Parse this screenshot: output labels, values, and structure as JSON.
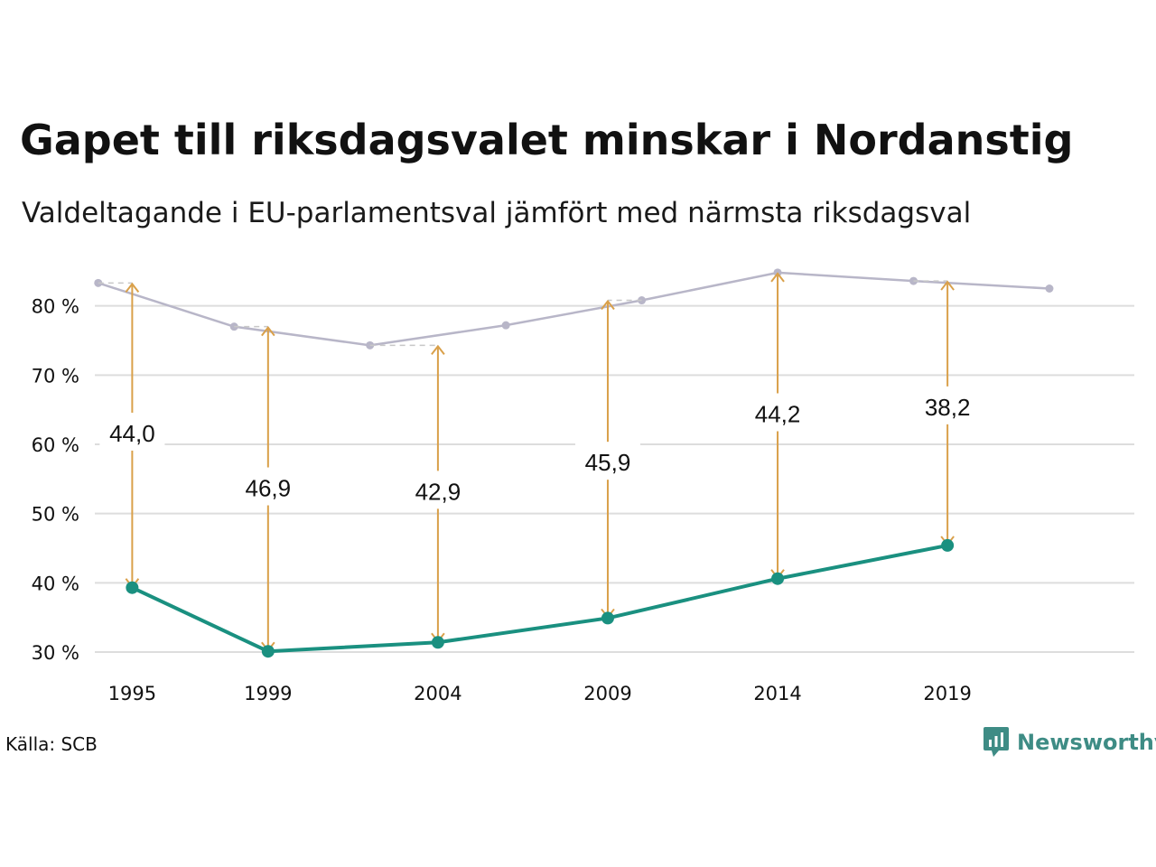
{
  "title": "Gapet till riksdagsvalet minskar i Nordanstig",
  "subtitle": "Valdeltagande i EU-parlamentsval jämfört med närmsta riksdagsval",
  "source": "Källa: SCB",
  "logo": {
    "text": "Newsworthy",
    "icon": "newsworthy-logo-icon",
    "color": "#3e8c85"
  },
  "chart_data": {
    "type": "line",
    "ylim": [
      27,
      87
    ],
    "xlim": [
      1993.9,
      2024.5
    ],
    "yticks": [
      30,
      40,
      50,
      60,
      70,
      80
    ],
    "ytick_labels": [
      "30 %",
      "40 %",
      "50 %",
      "60 %",
      "70 %",
      "80 %"
    ],
    "xticks": [
      1995,
      1999,
      2004,
      2009,
      2014,
      2019
    ],
    "xtick_labels": [
      "1995",
      "1999",
      "2004",
      "2009",
      "2014",
      "2019"
    ],
    "grid": true,
    "series": [
      {
        "name": "",
        "color": "#b8b6c8",
        "x": [
          1994,
          1998,
          2002,
          2006,
          2010,
          2014,
          2018,
          2022
        ],
        "y": [
          83.3,
          77.0,
          74.3,
          77.2,
          80.8,
          84.8,
          83.6,
          82.5
        ]
      },
      {
        "name": "",
        "color": "#1a9080",
        "x": [
          1995,
          1999,
          2004,
          2009,
          2014,
          2019
        ],
        "y": [
          39.3,
          30.1,
          31.4,
          34.9,
          40.6,
          45.4
        ]
      }
    ],
    "gaps": [
      {
        "x": 1995,
        "top": 83.3,
        "bottom": 39.3,
        "label": "44,0",
        "label_y": 61.7
      },
      {
        "x": 1999,
        "top": 77.0,
        "bottom": 30.1,
        "label": "46,9",
        "label_y": 53.8
      },
      {
        "x": 2004,
        "top": 74.3,
        "bottom": 31.4,
        "label": "42,9",
        "label_y": 53.3
      },
      {
        "x": 2009,
        "top": 80.8,
        "bottom": 34.9,
        "label": "45,9",
        "label_y": 57.5
      },
      {
        "x": 2014,
        "top": 84.8,
        "bottom": 40.6,
        "label": "44,2",
        "label_y": 64.5
      },
      {
        "x": 2019,
        "top": 83.6,
        "bottom": 45.4,
        "label": "38,2",
        "label_y": 65.5
      }
    ],
    "gap_color": "#d9a04a"
  }
}
